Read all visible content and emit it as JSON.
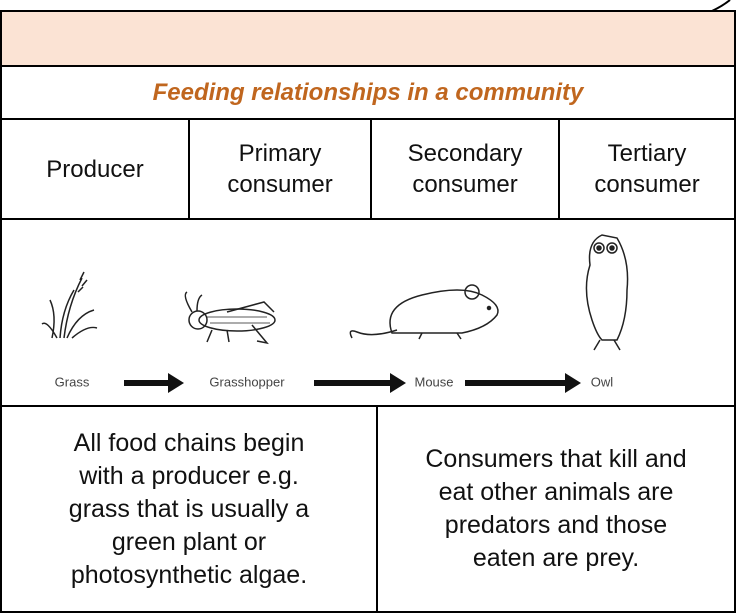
{
  "table": {
    "title": "Feeding relationships in a community",
    "columns": [
      [
        "Producer"
      ],
      [
        "Primary",
        "consumer"
      ],
      [
        "Secondary",
        "consumer"
      ],
      [
        "Tertiary",
        "consumer"
      ]
    ],
    "chain": [
      "Grass",
      "Grasshopper",
      "Mouse",
      "Owl"
    ],
    "descriptions": [
      [
        "All food chains begin",
        "with a producer e.g.",
        "grass that is usually a",
        "green plant or",
        "photosynthetic algae."
      ],
      [
        "Consumers that kill and",
        "eat other animals are",
        "predators and those",
        "eaten are prey."
      ]
    ]
  }
}
